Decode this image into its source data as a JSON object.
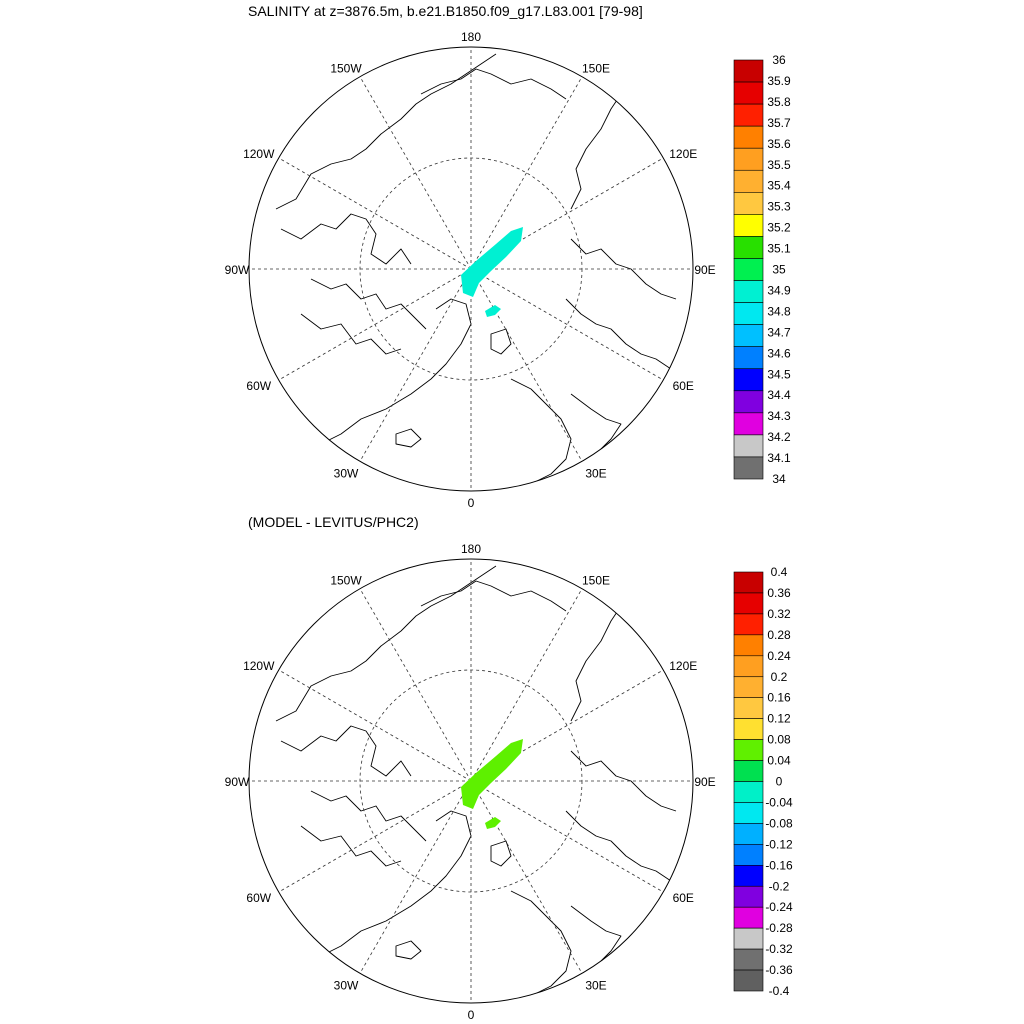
{
  "panels": [
    {
      "id": "salinity",
      "title": "SALINITY at z=3876.5m, b.e21.B1850.f09_g17.L83.001 [79-98]",
      "field_color": "#00f0d2",
      "colorbar_labels": [
        "36",
        "35.9",
        "35.8",
        "35.7",
        "35.6",
        "35.5",
        "35.4",
        "35.3",
        "35.2",
        "35.1",
        "35",
        "34.9",
        "34.8",
        "34.7",
        "34.6",
        "34.5",
        "34.4",
        "34.3",
        "34.2",
        "34.1",
        "34"
      ],
      "colorbar_colors": [
        "#c80000",
        "#e60000",
        "#ff2000",
        "#ff8000",
        "#ff9f20",
        "#ffb030",
        "#ffc840",
        "#ffff00",
        "#28e000",
        "#00f050",
        "#00f0d2",
        "#00e8f0",
        "#00c0ff",
        "#0080ff",
        "#0000ff",
        "#8000e0",
        "#e000e0",
        "#c8c8c8",
        "#707070"
      ]
    },
    {
      "id": "difference",
      "title": "(MODEL - LEVITUS/PHC2)",
      "field_color": "#5ef000",
      "colorbar_labels": [
        "0.4",
        "0.36",
        "0.32",
        "0.28",
        "0.24",
        "0.2",
        "0.16",
        "0.12",
        "0.08",
        "0.04",
        "0",
        "-0.04",
        "-0.08",
        "-0.12",
        "-0.16",
        "-0.2",
        "-0.24",
        "-0.28",
        "-0.32",
        "-0.36",
        "-0.4"
      ],
      "colorbar_colors": [
        "#c80000",
        "#e60000",
        "#ff2000",
        "#ff8000",
        "#ff9f20",
        "#ffb030",
        "#ffc840",
        "#ffe030",
        "#60f000",
        "#00e050",
        "#00f0c8",
        "#00e8f0",
        "#00b0ff",
        "#0080ff",
        "#0000ff",
        "#8000e0",
        "#e000e0",
        "#c8c8c8",
        "#707070",
        "#606060"
      ]
    }
  ],
  "map_labels": {
    "top": "180",
    "bottom": "0",
    "left": "90W",
    "right": "90E",
    "upper_left": "150W",
    "upper_right": "150E",
    "mid_left_upper": "120W",
    "mid_right_upper": "120E",
    "mid_left_lower": "60W",
    "mid_right_lower": "60E",
    "lower_left": "30W",
    "lower_right": "30E"
  }
}
